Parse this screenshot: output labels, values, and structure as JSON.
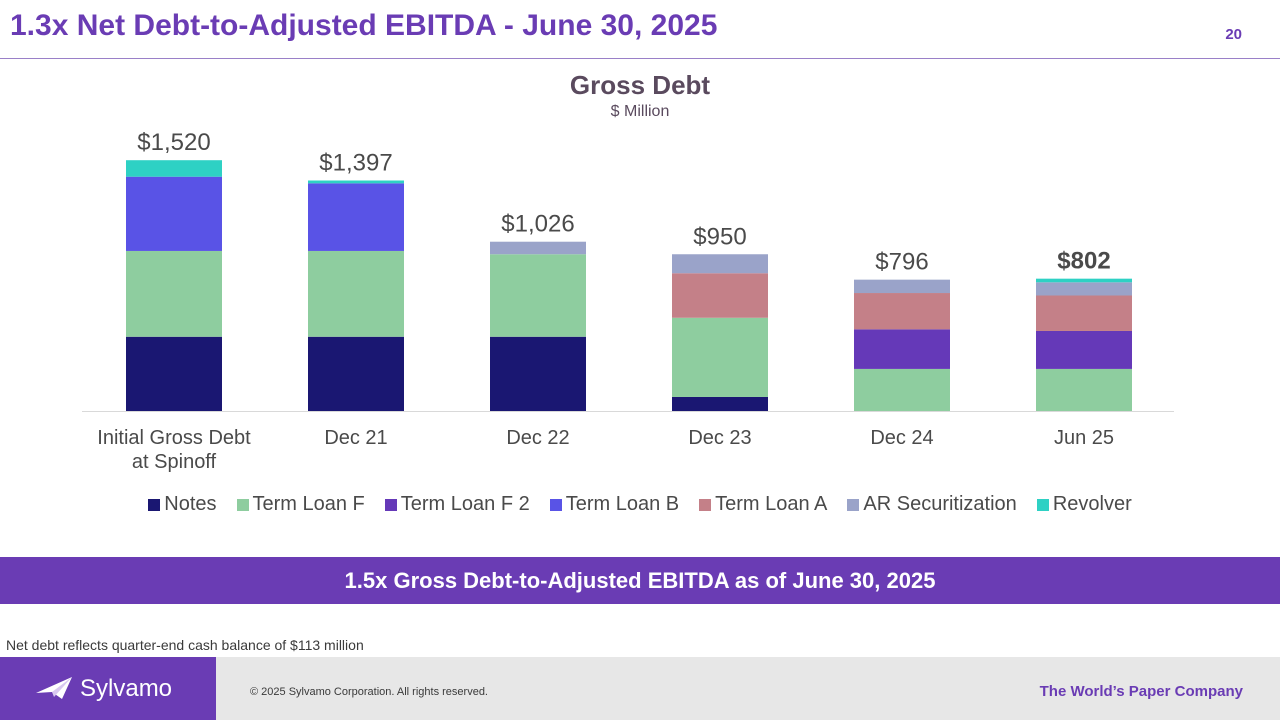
{
  "header": {
    "title": "1.3x Net Debt-to-Adjusted EBITDA - June 30, 2025",
    "page_number": "20"
  },
  "chart_data": {
    "type": "bar",
    "stacked": true,
    "title": "Gross Debt",
    "subtitle": "$ Million",
    "categories": [
      "Initial Gross Debt at Spinoff",
      "Dec 21",
      "Dec 22",
      "Dec 23",
      "Dec 24",
      "Jun 25"
    ],
    "category_lines": [
      [
        "Initial Gross Debt",
        "at Spinoff"
      ],
      [
        "Dec 21"
      ],
      [
        "Dec 22"
      ],
      [
        "Dec 23"
      ],
      [
        "Dec 24"
      ],
      [
        "Jun 25"
      ]
    ],
    "totals": [
      "$1,520",
      "$1,397",
      "$1,026",
      "$950",
      "$796",
      "$802"
    ],
    "total_values": [
      1520,
      1397,
      1026,
      950,
      796,
      802
    ],
    "highlight_last": true,
    "ylim": [
      0,
      1600
    ],
    "series": [
      {
        "name": "Notes",
        "color": "#1a1772",
        "values": [
          450,
          450,
          450,
          85,
          0,
          0
        ]
      },
      {
        "name": "Term Loan F",
        "color": "#8ecd9f",
        "values": [
          520,
          520,
          500,
          480,
          255,
          255
        ]
      },
      {
        "name": "Term Loan F 2",
        "color": "#6539b8",
        "values": [
          0,
          0,
          0,
          0,
          240,
          230
        ]
      },
      {
        "name": "Term Loan B",
        "color": "#5953e6",
        "values": [
          450,
          410,
          0,
          0,
          0,
          0
        ]
      },
      {
        "name": "Term Loan A",
        "color": "#c48088",
        "values": [
          0,
          0,
          0,
          270,
          220,
          215
        ]
      },
      {
        "name": "AR Securitization",
        "color": "#9aa3c9",
        "values": [
          0,
          0,
          76,
          115,
          81,
          80
        ]
      },
      {
        "name": "Revolver",
        "color": "#2ed1c4",
        "values": [
          100,
          17,
          0,
          0,
          0,
          22
        ]
      }
    ]
  },
  "banner": {
    "text": "1.5x Gross Debt-to-Adjusted EBITDA as of June 30, 2025"
  },
  "footnote": "Net debt reflects quarter-end cash balance of $113 million",
  "footer": {
    "logo_text": "Sylvamo",
    "copyright": "© 2025 Sylvamo Corporation. All rights reserved.",
    "tagline": "The World’s Paper Company"
  }
}
